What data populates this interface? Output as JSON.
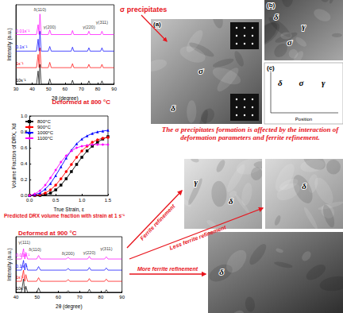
{
  "chart_data": [
    {
      "type": "line",
      "title": "Deformed at 800 °C",
      "x_label": "2θ (degree)",
      "y_label": "Intensity (a.u.)",
      "x": [
        30,
        42.6,
        43.6,
        44.2,
        44.7,
        45.5,
        49.8,
        50.7,
        51.6,
        63.8,
        64.6,
        65.4,
        73.8,
        74.6,
        75.4,
        81.8,
        82.6,
        83.4,
        90
      ],
      "xlim": [
        30,
        90
      ],
      "xticks": [
        30,
        40,
        50,
        60,
        70,
        80,
        90
      ],
      "ylim": [
        0,
        120
      ],
      "tick_labels": "x",
      "grid": false,
      "series": [
        {
          "name": "0.01s⁻¹",
          "color": "#ff00ff",
          "values": [
            75,
            75,
            90,
            75,
            106,
            75,
            75,
            82,
            75,
            75,
            81,
            75,
            75,
            80,
            75,
            75,
            80,
            75,
            75
          ]
        },
        {
          "name": "0.1s⁻¹",
          "color": "#0000ff",
          "values": [
            50,
            50,
            68,
            50,
            80,
            50,
            50,
            57,
            50,
            50,
            56,
            50,
            50,
            55,
            50,
            50,
            55,
            50,
            50
          ]
        },
        {
          "name": "1s⁻¹",
          "color": "#ff0000",
          "values": [
            25,
            25,
            45,
            25,
            55,
            25,
            25,
            33,
            25,
            25,
            31,
            25,
            25,
            30,
            25,
            25,
            30,
            25,
            25
          ]
        },
        {
          "name": "10s⁻¹",
          "color": "#000000",
          "values": [
            0,
            0,
            20,
            0,
            30,
            0,
            0,
            8,
            0,
            0,
            6,
            0,
            0,
            5,
            0,
            0,
            5,
            0,
            0
          ]
        }
      ],
      "peak_labels": [
        {
          "x": 44.7,
          "y": 113,
          "label": "δ(110)"
        },
        {
          "x": 50.7,
          "y": 87,
          "label": "γ(200)"
        },
        {
          "x": 74.6,
          "y": 86,
          "label": "γ(220)"
        },
        {
          "x": 82.6,
          "y": 94,
          "label": "γ(311)"
        }
      ]
    },
    {
      "type": "line",
      "title": "Predicted DRX volume fraction with strain at 1 s⁻¹",
      "x_label": "True Strain, ε",
      "y_label": "Volume Fraction of DRX, Xd",
      "x": [
        0,
        0.1,
        0.2,
        0.3,
        0.4,
        0.5,
        0.6,
        0.7,
        0.8,
        0.9,
        1.0,
        1.1,
        1.2,
        1.3,
        1.4,
        1.5
      ],
      "xlim": [
        0,
        1.5
      ],
      "xticks": [
        {
          "value": 0,
          "label": "0.0"
        },
        0.5,
        {
          "value": 1,
          "label": "1.0"
        },
        1.5
      ],
      "ylim": [
        0,
        1
      ],
      "yticks": [
        {
          "value": 0,
          "label": "0.0"
        },
        0.2,
        0.4,
        0.6,
        0.8,
        {
          "value": 1,
          "label": "1.0"
        }
      ],
      "legend": "upper left",
      "grid": false,
      "series": [
        {
          "name": "800°C",
          "color": "#000000",
          "marker": "square",
          "values": [
            0,
            0,
            0,
            0.01,
            0.03,
            0.07,
            0.13,
            0.21,
            0.3,
            0.39,
            0.48,
            0.56,
            0.62,
            0.67,
            0.71,
            0.74
          ]
        },
        {
          "name": "900°C",
          "color": "#ff0000",
          "marker": "circle",
          "values": [
            0,
            0,
            0.01,
            0.03,
            0.07,
            0.13,
            0.21,
            0.3,
            0.39,
            0.48,
            0.56,
            0.62,
            0.67,
            0.7,
            0.72,
            0.73
          ]
        },
        {
          "name": "1000°C",
          "color": "#0000ff",
          "marker": "triangle",
          "values": [
            0,
            0.01,
            0.03,
            0.08,
            0.15,
            0.25,
            0.36,
            0.47,
            0.57,
            0.65,
            0.71,
            0.75,
            0.78,
            0.8,
            0.81,
            0.82
          ]
        },
        {
          "name": "1100°C",
          "color": "#ff00ff",
          "marker": "diamond",
          "values": [
            0,
            0.02,
            0.06,
            0.13,
            0.22,
            0.32,
            0.42,
            0.5,
            0.56,
            0.6,
            0.62,
            0.63,
            0.64,
            0.64,
            0.64,
            0.64
          ]
        }
      ]
    },
    {
      "type": "line",
      "title": "Deformed at 900 °C",
      "x_label": "2θ (degree)",
      "y_label": "Intensity (a.u.)",
      "x": [
        40,
        42.6,
        43.6,
        44.2,
        44.7,
        45.5,
        49.8,
        50.7,
        51.6,
        63.8,
        64.6,
        65.4,
        73.8,
        74.6,
        75.4,
        81.8,
        82.6,
        83.4,
        90
      ],
      "xlim": [
        40,
        90
      ],
      "xticks": [
        40,
        50,
        60,
        70,
        80,
        90
      ],
      "ylim": [
        0,
        125
      ],
      "tick_labels": "x",
      "grid": false,
      "series": [
        {
          "name": "0.01s⁻¹",
          "color": "#ff00ff",
          "values": [
            75,
            75,
            98,
            75,
            90,
            75,
            75,
            83,
            75,
            75,
            79,
            75,
            75,
            81,
            75,
            75,
            80,
            75,
            75
          ]
        },
        {
          "name": "0.1s⁻¹",
          "color": "#0000ff",
          "values": [
            50,
            50,
            72,
            50,
            66,
            50,
            50,
            58,
            50,
            50,
            54,
            50,
            50,
            56,
            50,
            50,
            55,
            50,
            50
          ]
        },
        {
          "name": "1s⁻¹",
          "color": "#ff0000",
          "values": [
            25,
            25,
            50,
            25,
            40,
            25,
            25,
            33,
            25,
            25,
            29,
            25,
            25,
            31,
            25,
            25,
            30,
            25,
            25
          ]
        },
        {
          "name": "10s⁻¹",
          "color": "#000000",
          "values": [
            0,
            0,
            30,
            0,
            14,
            0,
            0,
            10,
            0,
            0,
            4,
            0,
            0,
            7,
            0,
            0,
            6,
            0,
            0
          ]
        }
      ],
      "peak_labels": [
        {
          "x": 44,
          "y": 112,
          "label": "γ(111)"
        },
        {
          "x": 49,
          "y": 96,
          "label": "δ(110)"
        },
        {
          "x": 64.6,
          "y": 88,
          "label": "δ(200)"
        },
        {
          "x": 74.6,
          "y": 89,
          "label": "γ(220)"
        },
        {
          "x": 82.6,
          "y": 99,
          "label": "γ(311)"
        }
      ]
    }
  ],
  "callout": "σ precipitates",
  "summary": "The σ precipitates formation is affected by the interaction of deformation parameters and ferrite refinement.",
  "arrows": [
    "Ferrite refinement",
    "Less ferrite refinement",
    "More ferrite refinement"
  ],
  "images": [
    {
      "panel": "(a)",
      "labels": [
        "σ",
        "δ"
      ]
    },
    {
      "panel": "(b)",
      "labels": [
        "δ",
        "σ",
        "γ"
      ]
    },
    {
      "panel": "(c)",
      "labels": [
        "δ",
        "σ",
        "γ"
      ],
      "x_label": "Position"
    },
    {
      "labels": [
        "γ",
        "δ"
      ]
    },
    {
      "labels": [
        "δ"
      ]
    },
    {
      "labels": [
        "δ"
      ]
    }
  ]
}
